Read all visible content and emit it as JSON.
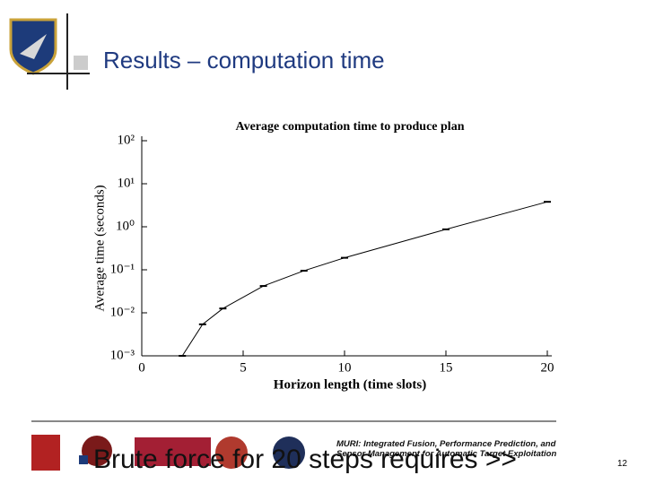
{
  "slide": {
    "title": "Results – computation time",
    "bullet": "Brute force for 20 steps requires >>",
    "footer": "MURI: Integrated Fusion, Performance Prediction, and Sensor Management for Automatic Target Exploitation",
    "page_number": "12"
  },
  "chart_data": {
    "type": "line",
    "title": "Average computation time to produce plan",
    "x_label": "Horizon length (time slots)",
    "y_label": "Average time (seconds)",
    "x": [
      2,
      3,
      4,
      6,
      8,
      10,
      15,
      20
    ],
    "series": [
      {
        "color": "#000000",
        "values": [
          0.001,
          0.0054,
          0.0126,
          0.042,
          0.095,
          0.19,
          0.87,
          3.8
        ]
      }
    ],
    "xlim": [
      0,
      20
    ],
    "xticks": [
      0,
      5,
      10,
      15,
      20
    ],
    "ylim": [
      0.001,
      100
    ],
    "y_scale": "log",
    "yticks": [
      {
        "value": 0.001,
        "label": "10⁻³"
      },
      {
        "value": 0.01,
        "label": "10⁻²"
      },
      {
        "value": 0.1,
        "label": "10⁻¹"
      },
      {
        "value": 1,
        "label": "10⁰"
      },
      {
        "value": 10,
        "label": "10¹"
      },
      {
        "value": 100,
        "label": "10²"
      }
    ]
  }
}
